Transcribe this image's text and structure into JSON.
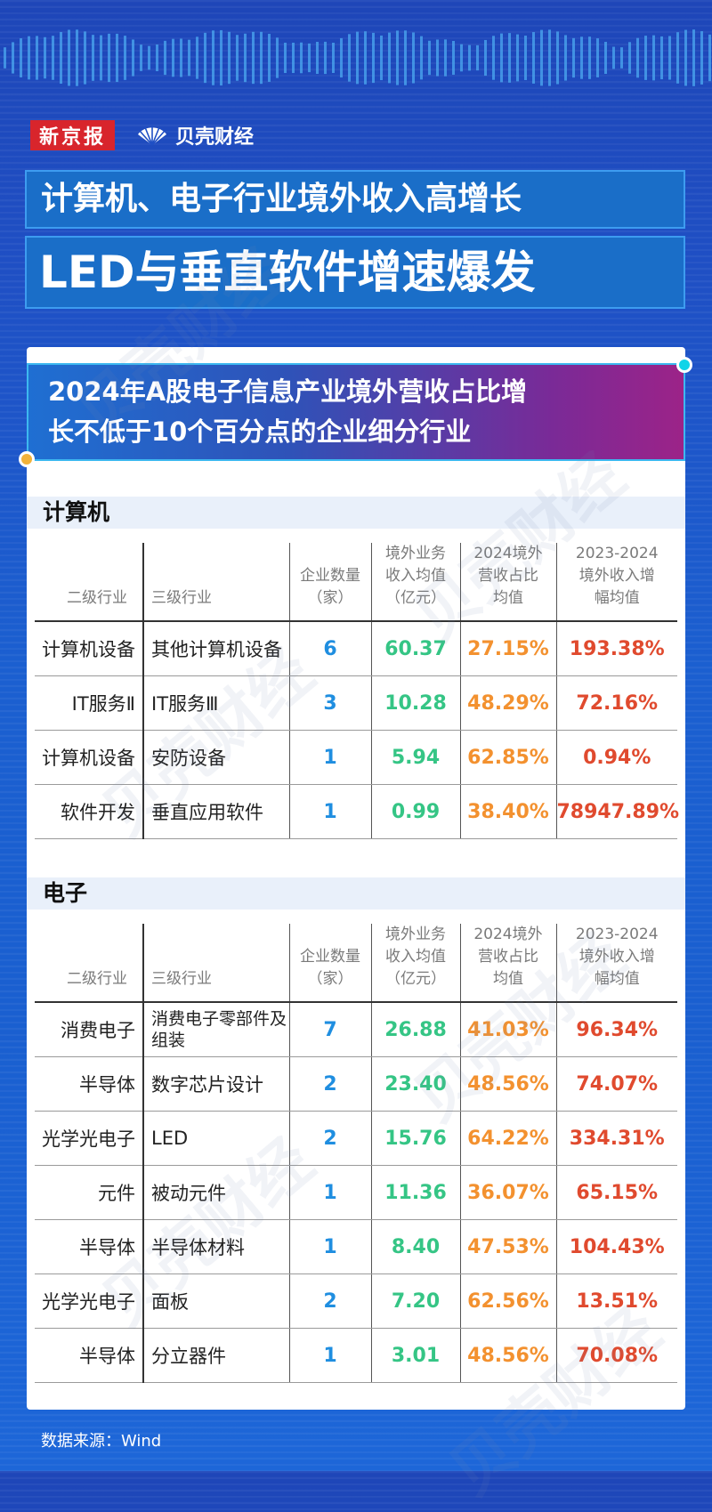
{
  "brand": {
    "newspaper": "新京报",
    "finance": "贝壳财经"
  },
  "title": {
    "line1": "计算机、电子行业境外收入高增长",
    "line2": "LED与垂直软件增速爆发"
  },
  "banner": {
    "line1": "2024年A股电子信息产业境外营收占比增",
    "line2": "长不低于10个百分点的企业细分行业"
  },
  "headers": {
    "col1": "二级行业",
    "col2": "三级行业",
    "col3": [
      "企业数量",
      "（家）"
    ],
    "col4": [
      "境外业务",
      "收入均值",
      "（亿元）"
    ],
    "col5": [
      "2024境外",
      "营收占比",
      "均值"
    ],
    "col6": [
      "2023-2024",
      "境外收入增",
      "幅均值"
    ]
  },
  "sections": [
    {
      "name": "计算机",
      "rows": [
        {
          "l2": "计算机设备",
          "l3": "其他计算机设备",
          "count": "6",
          "revenue": "60.37",
          "share": "27.15%",
          "growth": "193.38%"
        },
        {
          "l2": "IT服务Ⅱ",
          "l3": "IT服务Ⅲ",
          "count": "3",
          "revenue": "10.28",
          "share": "48.29%",
          "growth": "72.16%"
        },
        {
          "l2": "计算机设备",
          "l3": "安防设备",
          "count": "1",
          "revenue": "5.94",
          "share": "62.85%",
          "growth": "0.94%"
        },
        {
          "l2": "软件开发",
          "l3": "垂直应用软件",
          "count": "1",
          "revenue": "0.99",
          "share": "38.40%",
          "growth": "78947.89%"
        }
      ]
    },
    {
      "name": "电子",
      "rows": [
        {
          "l2": "消费电子",
          "l3": "消费电子零部件及组装",
          "count": "7",
          "revenue": "26.88",
          "share": "41.03%",
          "growth": "96.34%"
        },
        {
          "l2": "半导体",
          "l3": "数字芯片设计",
          "count": "2",
          "revenue": "23.40",
          "share": "48.56%",
          "growth": "74.07%"
        },
        {
          "l2": "光学光电子",
          "l3": "LED",
          "count": "2",
          "revenue": "15.76",
          "share": "64.22%",
          "growth": "334.31%"
        },
        {
          "l2": "元件",
          "l3": "被动元件",
          "count": "1",
          "revenue": "11.36",
          "share": "36.07%",
          "growth": "65.15%"
        },
        {
          "l2": "半导体",
          "l3": "半导体材料",
          "count": "1",
          "revenue": "8.40",
          "share": "47.53%",
          "growth": "104.43%"
        },
        {
          "l2": "光学光电子",
          "l3": "面板",
          "count": "2",
          "revenue": "7.20",
          "share": "62.56%",
          "growth": "13.51%"
        },
        {
          "l2": "半导体",
          "l3": "分立器件",
          "count": "1",
          "revenue": "3.01",
          "share": "48.56%",
          "growth": "70.08%"
        }
      ]
    }
  ],
  "source": "数据来源：Wind",
  "watermark": "贝壳财经",
  "colors": {
    "count": "#1f8ee0",
    "revenue": "#35c585",
    "share": "#f3912f",
    "growth": "#e04a2e",
    "brand_red": "#d8252c"
  }
}
